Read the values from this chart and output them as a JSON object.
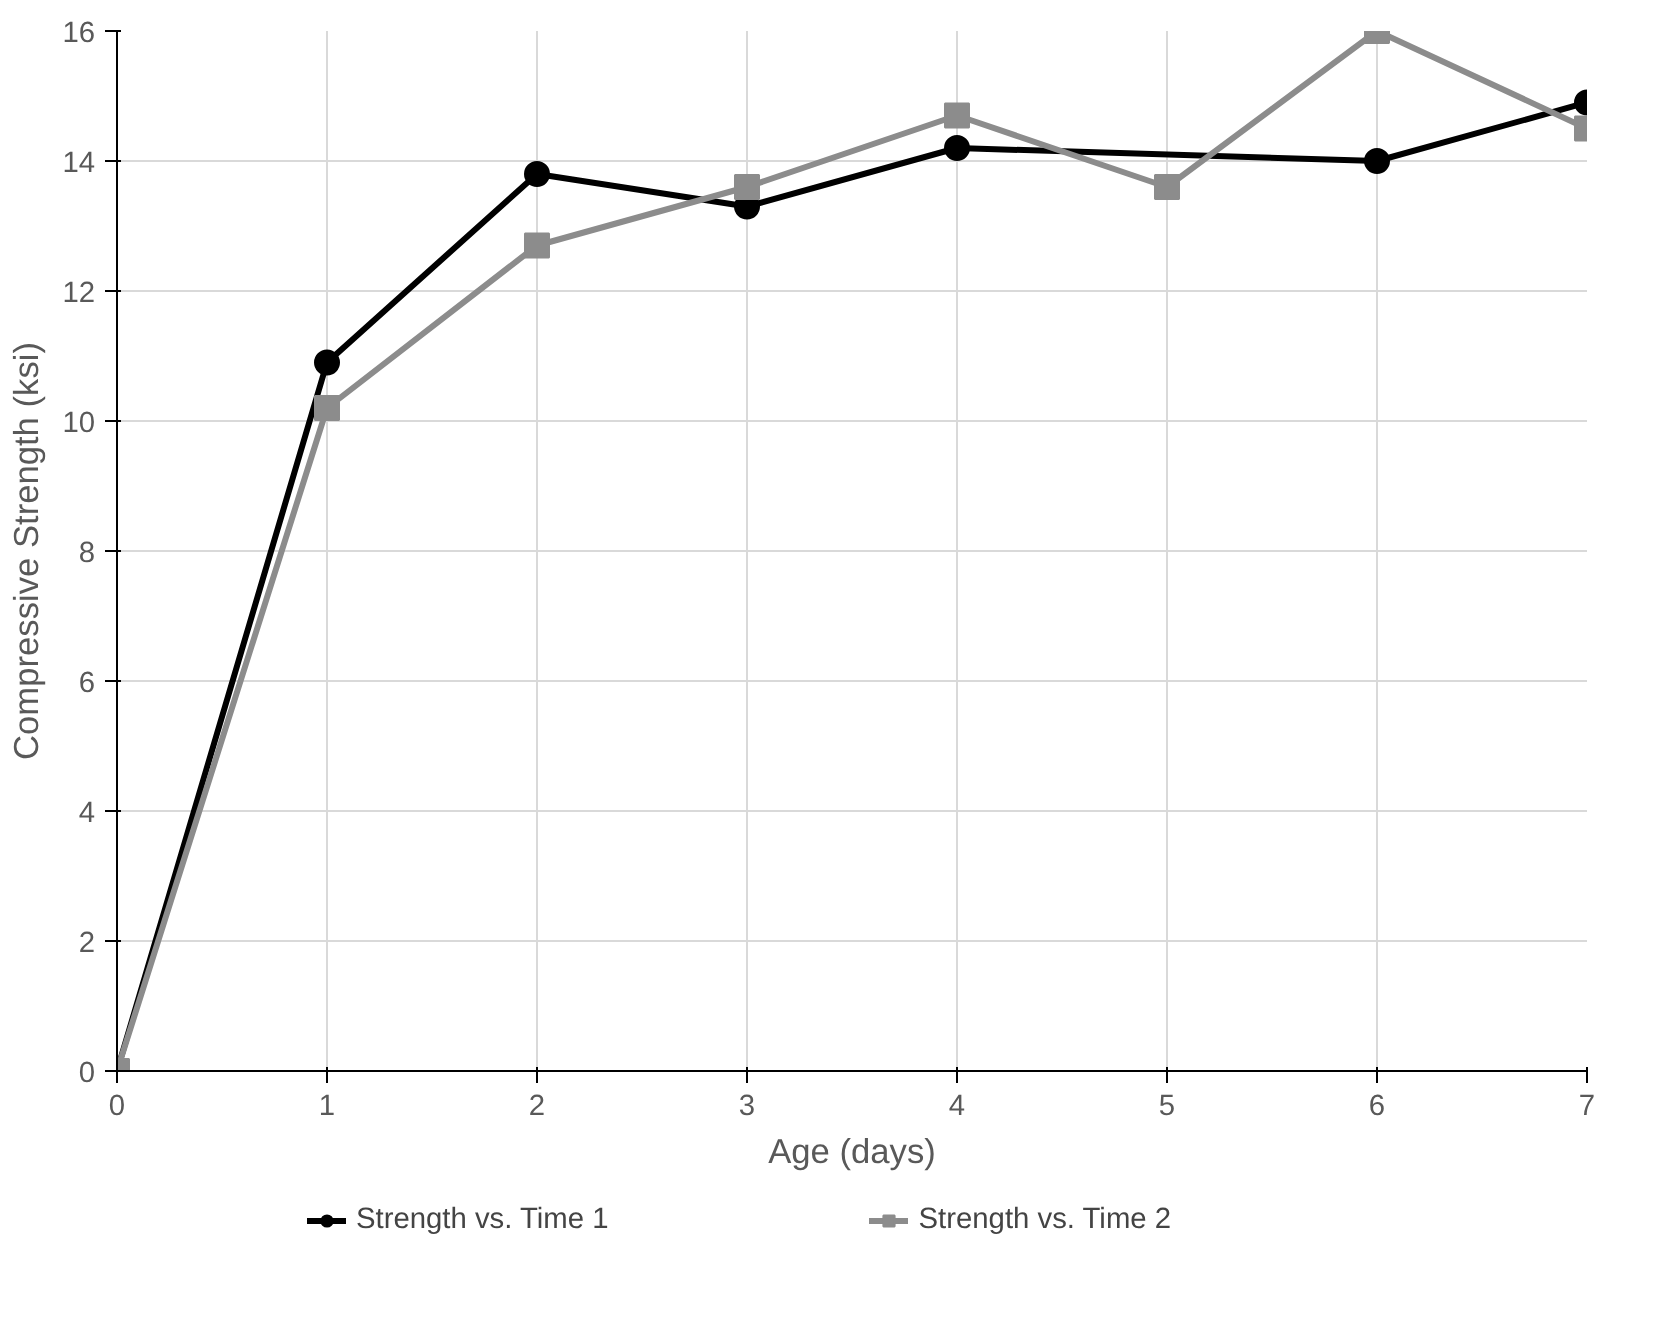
{
  "chart_data": {
    "type": "line",
    "xlabel": "Age (days)",
    "ylabel": "Compressive Strength (ksi)",
    "xlim": [
      0,
      7
    ],
    "xticks": [
      0,
      1,
      2,
      3,
      4,
      5,
      6,
      7
    ],
    "ylim": [
      0,
      16
    ],
    "yticks": [
      0,
      2,
      4,
      6,
      8,
      10,
      12,
      14,
      16
    ],
    "grid": true,
    "legend": "bottom",
    "line_style": "solid",
    "series": [
      {
        "name": "Strength vs. Time 1",
        "color": "#000000",
        "marker": "circle",
        "x": [
          0,
          1,
          2,
          3,
          4,
          6,
          7
        ],
        "values": [
          0,
          10.9,
          13.8,
          13.3,
          14.2,
          14.0,
          14.9
        ]
      },
      {
        "name": "Strength vs. Time 2",
        "color": "#8c8c8c",
        "marker": "square",
        "x": [
          0,
          1,
          2,
          3,
          4,
          5,
          6,
          7
        ],
        "values": [
          0,
          10.2,
          12.7,
          13.6,
          14.7,
          13.6,
          16.0,
          14.5
        ]
      }
    ]
  }
}
